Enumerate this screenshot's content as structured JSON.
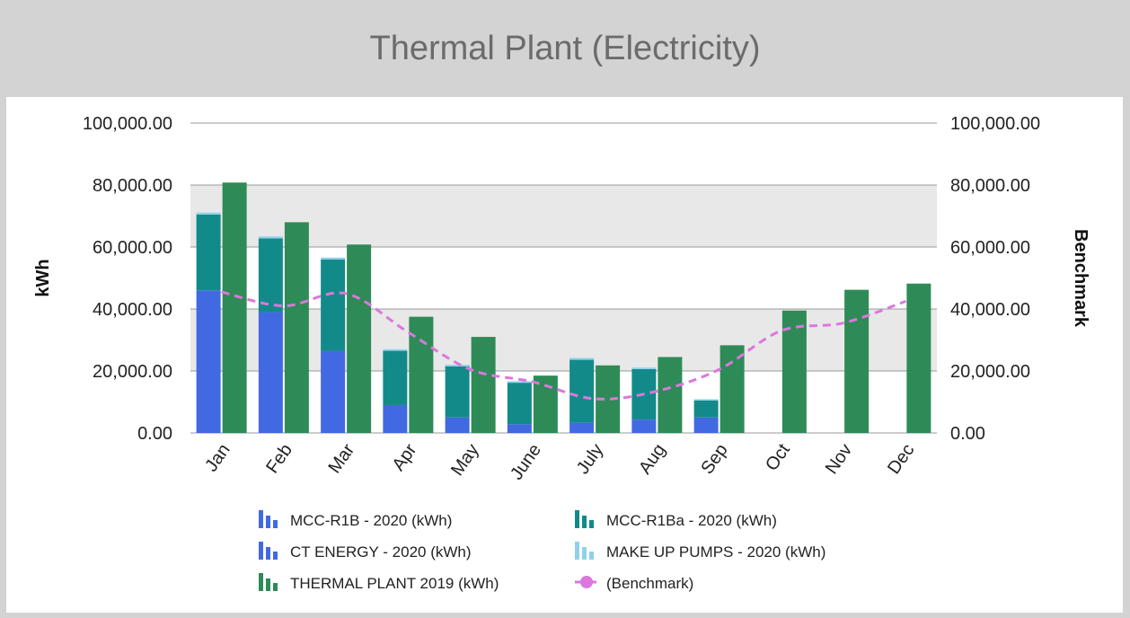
{
  "title": "Thermal Plant (Electricity)",
  "chart_data": {
    "type": "bar",
    "title": "Thermal Plant (Electricity)",
    "categories": [
      "Jan",
      "Feb",
      "Mar",
      "Apr",
      "May",
      "June",
      "July",
      "Aug",
      "Sep",
      "Oct",
      "Nov",
      "Dec"
    ],
    "ylabel": "kWh",
    "y2label": "Benchmark",
    "ylim": [
      0,
      100000
    ],
    "y2lim": [
      0,
      100000
    ],
    "yticks": [
      "0.00",
      "20,000.00",
      "40,000.00",
      "60,000.00",
      "80,000.00",
      "100,000.00"
    ],
    "grid": true,
    "legend_position": "bottom",
    "series": [
      {
        "name": "MCC-R1B - 2020 (kWh)",
        "type": "stacked-bar",
        "stack": "2020",
        "color": "#4169e1",
        "values": [
          46000,
          39000,
          26500,
          9000,
          5000,
          2800,
          3300,
          4300,
          5000,
          null,
          null,
          null
        ]
      },
      {
        "name": "CT ENERGY - 2020 (kWh)",
        "type": "stacked-bar",
        "stack": "2020",
        "color": "#4169e1",
        "values": [
          0,
          0,
          0,
          0,
          0,
          0,
          0,
          0,
          0,
          null,
          null,
          null
        ]
      },
      {
        "name": "MCC-R1Ba - 2020 (kWh)",
        "type": "stacked-bar",
        "stack": "2020",
        "color": "#138a8a",
        "values": [
          24500,
          23800,
          29500,
          17500,
          16500,
          13400,
          20300,
          16300,
          5500,
          null,
          null,
          null
        ]
      },
      {
        "name": "MAKE UP PUMPS - 2020 (kWh)",
        "type": "stacked-bar",
        "stack": "2020",
        "color": "#8ed1ec",
        "values": [
          600,
          600,
          600,
          500,
          500,
          500,
          600,
          500,
          400,
          null,
          null,
          null
        ]
      },
      {
        "name": "THERMAL PLANT 2019 (kWh)",
        "type": "bar",
        "stack": "2019",
        "color": "#2e8b57",
        "values": [
          80800,
          68000,
          60800,
          37500,
          31000,
          18500,
          21800,
          24500,
          28300,
          39500,
          46200,
          48200
        ]
      },
      {
        "name": "(Benchmark)",
        "type": "line",
        "axis": "right",
        "color": "#dd77dd",
        "values": [
          45500,
          41000,
          45000,
          32500,
          20500,
          16500,
          11000,
          13500,
          20500,
          33000,
          35500,
          42500
        ]
      }
    ]
  }
}
